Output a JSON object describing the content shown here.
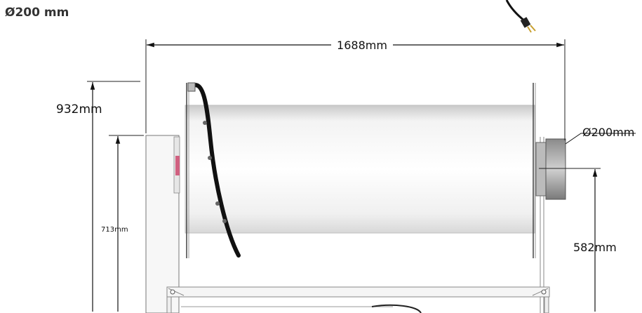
{
  "heading": "Ø200 mm",
  "dimensions": {
    "overall_length": "1688mm",
    "overall_height": "932mm",
    "frame_height": "713mm",
    "outlet_diameter": "Ø200mm",
    "outlet_height": "582mm"
  }
}
